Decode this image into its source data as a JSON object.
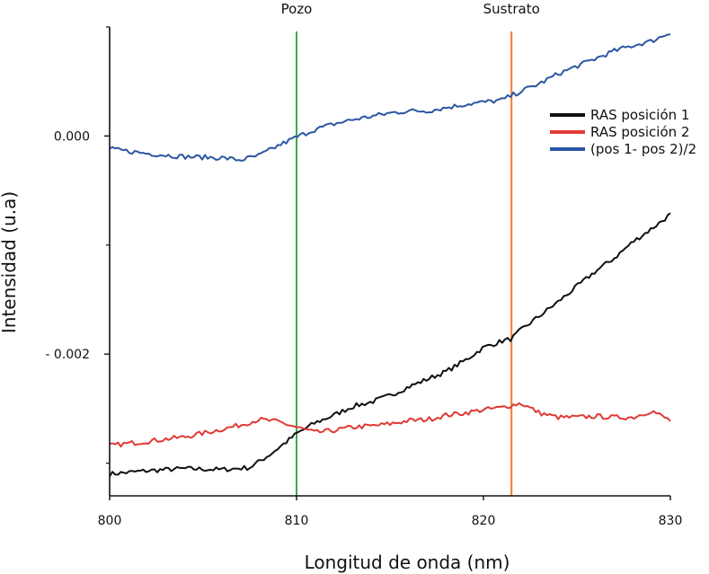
{
  "chart_data": {
    "type": "line",
    "xlabel": "Longitud de onda (nm)",
    "ylabel": "Intensidad (u.a)",
    "xlim": [
      800,
      830
    ],
    "ylim": [
      -0.0033,
      0.001
    ],
    "x_ticks": [
      800,
      810,
      820,
      830
    ],
    "x_tick_labels": [
      "800",
      "810",
      "820",
      "830"
    ],
    "y_ticks": [
      0.0,
      -0.002
    ],
    "y_tick_labels": [
      "0.000",
      "- 0.002"
    ],
    "y_minor_ticks": [
      0.001,
      -0.001,
      -0.003
    ],
    "grid": false,
    "legend_position": "right",
    "vertical_markers": [
      {
        "label": "Pozo",
        "x": 810.0,
        "color": "#3aaa4a"
      },
      {
        "label": "Sustrato",
        "x": 821.5,
        "color": "#f07b2c"
      }
    ],
    "series": [
      {
        "name": "RAS posición 1",
        "color": "#111111",
        "x": [
          800,
          802,
          804,
          806,
          807.5,
          808.5,
          809.5,
          810,
          811,
          812,
          813,
          814,
          815,
          816,
          817,
          818,
          819,
          820,
          821,
          821.5,
          822,
          823,
          824,
          825,
          826,
          827,
          828,
          829,
          830
        ],
        "y": [
          -0.0031,
          -0.00307,
          -0.00305,
          -0.00306,
          -0.00304,
          -0.00293,
          -0.0028,
          -0.00273,
          -0.00263,
          -0.00256,
          -0.00248,
          -0.00244,
          -0.00238,
          -0.0023,
          -0.00223,
          -0.00216,
          -0.00206,
          -0.00194,
          -0.00188,
          -0.00186,
          -0.00178,
          -0.00165,
          -0.00152,
          -0.00138,
          -0.00124,
          -0.00112,
          -0.00097,
          -0.00085,
          -0.00072
        ]
      },
      {
        "name": "RAS posición 2",
        "color": "#e03a35",
        "x": [
          800,
          802,
          804,
          806,
          807,
          808,
          809,
          810,
          811,
          812,
          813,
          814,
          815,
          816,
          817,
          818,
          819,
          820,
          821,
          822,
          823,
          824,
          825,
          826,
          827,
          828,
          829,
          830
        ],
        "y": [
          -0.00284,
          -0.0028,
          -0.00276,
          -0.00269,
          -0.00265,
          -0.0026,
          -0.00262,
          -0.00267,
          -0.00272,
          -0.0027,
          -0.00267,
          -0.00266,
          -0.00264,
          -0.00261,
          -0.0026,
          -0.00256,
          -0.00254,
          -0.00251,
          -0.00249,
          -0.00245,
          -0.00254,
          -0.00258,
          -0.00258,
          -0.00257,
          -0.00258,
          -0.00258,
          -0.00252,
          -0.00261
        ]
      },
      {
        "name": "(pos 1- pos 2)/2",
        "color": "#2c56a3",
        "x": [
          800,
          802,
          804,
          806,
          807,
          808,
          809,
          810,
          811,
          812,
          813,
          814,
          815,
          816,
          817,
          818,
          819,
          820,
          821,
          822,
          823,
          824,
          825,
          826,
          827,
          828,
          829,
          830
        ],
        "y": [
          -0.00012,
          -0.00016,
          -0.00019,
          -0.0002,
          -0.00022,
          -0.00018,
          -9e-05,
          -1e-05,
          6e-05,
          0.00011,
          0.00015,
          0.00018,
          0.00021,
          0.00023,
          0.00023,
          0.00026,
          0.00029,
          0.00031,
          0.00033,
          0.00041,
          0.00048,
          0.00057,
          0.00064,
          0.00071,
          0.00078,
          0.00083,
          0.00087,
          0.00095
        ]
      }
    ]
  }
}
